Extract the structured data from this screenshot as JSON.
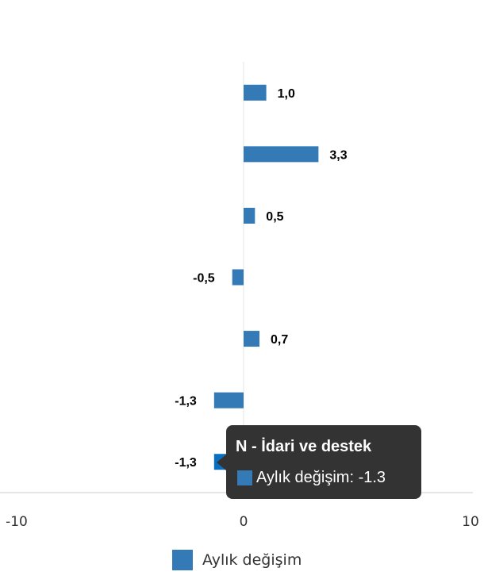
{
  "chart_data": {
    "type": "bar",
    "orientation": "horizontal",
    "categories": [
      "",
      "",
      "",
      "",
      "",
      "",
      "N - İdari ve destek"
    ],
    "series": [
      {
        "name": "Aylık değişim",
        "values": [
          1.0,
          3.3,
          0.5,
          -0.5,
          0.7,
          -1.3,
          -1.3
        ]
      }
    ],
    "data_labels": [
      "1,0",
      "3,3",
      "0,5",
      "-0,5",
      "0,7",
      "-1,3",
      "-1,3"
    ],
    "xlim": [
      -10,
      10
    ],
    "x_ticks": [
      "-10",
      "0",
      "10"
    ],
    "legend_position": "bottom",
    "colors": {
      "bar": "#337ab7",
      "highlight": "#0b6fc0"
    },
    "highlighted_index": 6
  },
  "tooltip": {
    "title": "N - İdari ve destek",
    "text": "Aylık değişim: -1.3"
  },
  "legend": {
    "label": "Aylık değişim"
  }
}
